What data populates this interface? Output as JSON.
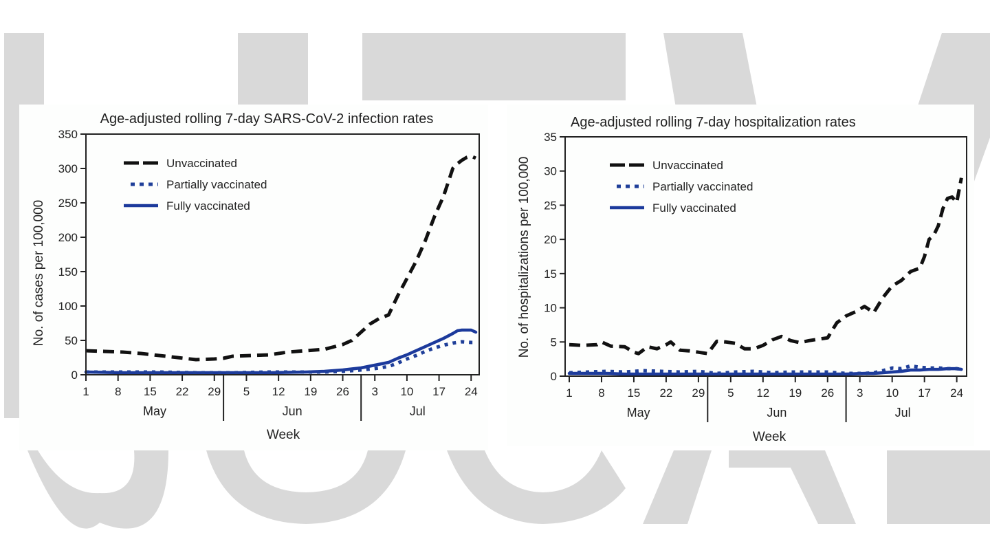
{
  "colors": {
    "unvaccinated": "#111111",
    "partially": "#1f3f99",
    "fully": "#1c3a9c",
    "watermark": "#d9d9d9",
    "axis": "#222222"
  },
  "chart_data": [
    {
      "type": "line",
      "title": "Age-adjusted rolling 7-day SARS-CoV-2 infection rates",
      "xlabel": "Week",
      "ylabel": "No. of cases per 100,000",
      "ylim": [
        0,
        350
      ],
      "yticks": [
        0,
        50,
        100,
        150,
        200,
        250,
        300,
        350
      ],
      "xticks": [
        {
          "day": 0,
          "label": "1"
        },
        {
          "day": 7,
          "label": "8"
        },
        {
          "day": 14,
          "label": "15"
        },
        {
          "day": 21,
          "label": "22"
        },
        {
          "day": 28,
          "label": "29"
        },
        {
          "day": 35,
          "label": "5"
        },
        {
          "day": 42,
          "label": "12"
        },
        {
          "day": 49,
          "label": "19"
        },
        {
          "day": 56,
          "label": "26"
        },
        {
          "day": 63,
          "label": "3"
        },
        {
          "day": 70,
          "label": "10"
        },
        {
          "day": 77,
          "label": "17"
        },
        {
          "day": 84,
          "label": "24"
        }
      ],
      "months": [
        {
          "label": "May",
          "start": 0,
          "end": 30
        },
        {
          "label": "Jun",
          "start": 30,
          "end": 60
        },
        {
          "label": "Jul",
          "start": 60,
          "end": 85
        }
      ],
      "xlim": [
        0,
        85
      ],
      "legend": "top-left",
      "series": [
        {
          "name": "Unvaccinated",
          "style": "dashed",
          "x": [
            0,
            4,
            8,
            12,
            16,
            20,
            24,
            28,
            30,
            32,
            36,
            40,
            44,
            48,
            52,
            56,
            58,
            60,
            62,
            64,
            66,
            68,
            70,
            72,
            74,
            76,
            78,
            80,
            81,
            82,
            83,
            84,
            85
          ],
          "y": [
            35,
            34,
            33,
            31,
            28,
            25,
            22,
            23,
            24,
            27,
            28,
            29,
            33,
            35,
            37,
            44,
            50,
            62,
            74,
            82,
            87,
            115,
            140,
            165,
            195,
            230,
            260,
            300,
            307,
            312,
            316,
            318,
            315
          ]
        },
        {
          "name": "Partially vaccinated",
          "style": "dotted",
          "x": [
            0,
            8,
            16,
            24,
            32,
            40,
            48,
            52,
            56,
            60,
            63,
            66,
            68,
            70,
            72,
            74,
            76,
            78,
            80,
            82,
            84,
            85
          ],
          "y": [
            4,
            4,
            4,
            3,
            3,
            4,
            4,
            4,
            5,
            7,
            9,
            12,
            17,
            23,
            28,
            34,
            39,
            43,
            46,
            48,
            47,
            47
          ]
        },
        {
          "name": "Fully vaccinated",
          "style": "solid",
          "x": [
            0,
            8,
            16,
            24,
            32,
            40,
            48,
            52,
            56,
            60,
            63,
            66,
            68,
            70,
            72,
            74,
            76,
            78,
            80,
            81,
            82,
            84,
            85
          ],
          "y": [
            4,
            3,
            3,
            3,
            3,
            3,
            4,
            5,
            7,
            10,
            14,
            18,
            24,
            29,
            35,
            41,
            47,
            53,
            60,
            64,
            65,
            65,
            62
          ]
        }
      ]
    },
    {
      "type": "line",
      "title": "Age-adjusted rolling 7-day hospitalization rates",
      "xlabel": "Week",
      "ylabel": "No. of hospitalizations per 100,000",
      "ylim": [
        0,
        35
      ],
      "yticks": [
        0,
        5,
        10,
        15,
        20,
        25,
        30,
        35
      ],
      "xticks": [
        {
          "day": 0,
          "label": "1"
        },
        {
          "day": 7,
          "label": "8"
        },
        {
          "day": 14,
          "label": "15"
        },
        {
          "day": 21,
          "label": "22"
        },
        {
          "day": 28,
          "label": "29"
        },
        {
          "day": 35,
          "label": "5"
        },
        {
          "day": 42,
          "label": "12"
        },
        {
          "day": 49,
          "label": "19"
        },
        {
          "day": 56,
          "label": "26"
        },
        {
          "day": 63,
          "label": "3"
        },
        {
          "day": 70,
          "label": "10"
        },
        {
          "day": 77,
          "label": "17"
        },
        {
          "day": 84,
          "label": "24"
        }
      ],
      "months": [
        {
          "label": "May",
          "start": 0,
          "end": 30
        },
        {
          "label": "Jun",
          "start": 30,
          "end": 60
        },
        {
          "label": "Jul",
          "start": 60,
          "end": 85
        }
      ],
      "xlim": [
        0,
        85
      ],
      "legend": "top-left",
      "series": [
        {
          "name": "Unvaccinated",
          "style": "dashed",
          "x": [
            0,
            3,
            6,
            7,
            9,
            12,
            14,
            15,
            17,
            19,
            21,
            22,
            24,
            26,
            28,
            30,
            32,
            34,
            36,
            38,
            40,
            42,
            44,
            46,
            48,
            50,
            52,
            54,
            56,
            58,
            60,
            62,
            64,
            66,
            68,
            70,
            72,
            74,
            76,
            77,
            78,
            79,
            80,
            81,
            82,
            83,
            84,
            85
          ],
          "y": [
            4.6,
            4.5,
            4.6,
            5.0,
            4.4,
            4.3,
            3.5,
            3.3,
            4.3,
            4.0,
            4.6,
            5.0,
            3.8,
            3.7,
            3.5,
            3.3,
            5.1,
            5.0,
            4.8,
            4.0,
            4.0,
            4.5,
            5.3,
            5.8,
            5.2,
            4.9,
            5.2,
            5.4,
            5.6,
            7.8,
            8.8,
            9.4,
            10.2,
            9.3,
            11.5,
            13.2,
            14.0,
            15.3,
            15.8,
            17.5,
            20.0,
            20.6,
            22.0,
            24.5,
            26.0,
            26.2,
            25.4,
            29.0
          ]
        },
        {
          "name": "Partially vaccinated",
          "style": "dotted",
          "x": [
            0,
            4,
            8,
            12,
            16,
            20,
            24,
            28,
            32,
            36,
            40,
            44,
            48,
            52,
            56,
            60,
            64,
            66,
            68,
            70,
            72,
            74,
            76,
            78,
            80,
            82,
            84,
            85
          ],
          "y": [
            0.5,
            0.6,
            0.7,
            0.6,
            0.8,
            0.7,
            0.6,
            0.7,
            0.4,
            0.6,
            0.7,
            0.5,
            0.6,
            0.6,
            0.6,
            0.4,
            0.4,
            0.5,
            0.8,
            1.2,
            1.1,
            1.5,
            1.3,
            1.2,
            1.2,
            1.1,
            1.1,
            1.0
          ]
        },
        {
          "name": "Fully vaccinated",
          "style": "solid",
          "x": [
            0,
            4,
            8,
            12,
            16,
            20,
            24,
            28,
            32,
            36,
            40,
            44,
            48,
            52,
            56,
            60,
            64,
            66,
            68,
            70,
            72,
            74,
            76,
            78,
            80,
            82,
            84,
            85
          ],
          "y": [
            0.4,
            0.4,
            0.4,
            0.3,
            0.3,
            0.3,
            0.3,
            0.3,
            0.3,
            0.3,
            0.3,
            0.3,
            0.3,
            0.3,
            0.3,
            0.3,
            0.4,
            0.4,
            0.5,
            0.6,
            0.7,
            0.9,
            0.9,
            1.0,
            1.0,
            1.1,
            1.1,
            1.0
          ]
        }
      ]
    }
  ]
}
